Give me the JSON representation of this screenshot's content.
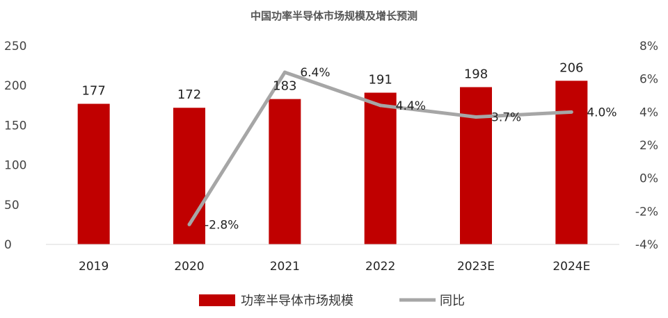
{
  "chart_data": {
    "type": "bar",
    "title": "中国功率半导体市场规模及增长预测",
    "categories": [
      "2019",
      "2020",
      "2021",
      "2022",
      "2023E",
      "2024E"
    ],
    "series": [
      {
        "name": "功率半导体市场规模",
        "type": "bar",
        "axis": "left",
        "color": "#c00000",
        "values": [
          177,
          172,
          183,
          191,
          198,
          206
        ]
      },
      {
        "name": "同比",
        "type": "line",
        "axis": "right",
        "color": "#a6a6a6",
        "values": [
          null,
          -2.8,
          6.4,
          4.4,
          3.7,
          4.0
        ],
        "labels": [
          "",
          "-2.8%",
          "6.4%",
          "4.4%",
          "3.7%",
          "4.0%"
        ]
      }
    ],
    "ylim": [
      0,
      250
    ],
    "y_ticks": [
      "0",
      "50",
      "100",
      "150",
      "200",
      "250"
    ],
    "y2lim": [
      -4,
      8
    ],
    "y2_ticks": [
      "-4%",
      "-2%",
      "0%",
      "2%",
      "4%",
      "6%",
      "8%"
    ],
    "grid": false,
    "legend_position": "bottom"
  }
}
